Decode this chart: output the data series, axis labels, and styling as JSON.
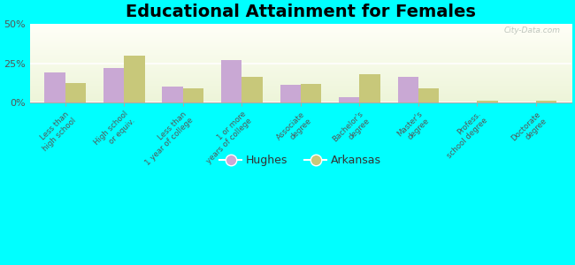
{
  "title": "Educational Attainment for Females",
  "categories": [
    "Less than\nhigh school",
    "High school\nor equiv.",
    "Less than\n1 year of college",
    "1 or more\nyears of college",
    "Associate\ndegree",
    "Bachelor's\ndegree",
    "Master's\ndegree",
    "Profess.\nschool degree",
    "Doctorate\ndegree"
  ],
  "hughes": [
    19.0,
    22.0,
    10.0,
    27.0,
    11.0,
    3.0,
    16.0,
    0.0,
    0.0
  ],
  "arkansas": [
    12.0,
    30.0,
    9.0,
    16.0,
    11.5,
    18.0,
    9.0,
    1.0,
    1.0
  ],
  "hughes_color": "#c9a8d4",
  "arkansas_color": "#c8c87a",
  "background_color": "#00ffff",
  "ylim": [
    0,
    50
  ],
  "yticks": [
    0,
    25,
    50
  ],
  "ytick_labels": [
    "0%",
    "25%",
    "50%"
  ],
  "bar_width": 0.35,
  "title_fontsize": 14,
  "legend_labels": [
    "Hughes",
    "Arkansas"
  ],
  "watermark": "City-Data.com"
}
